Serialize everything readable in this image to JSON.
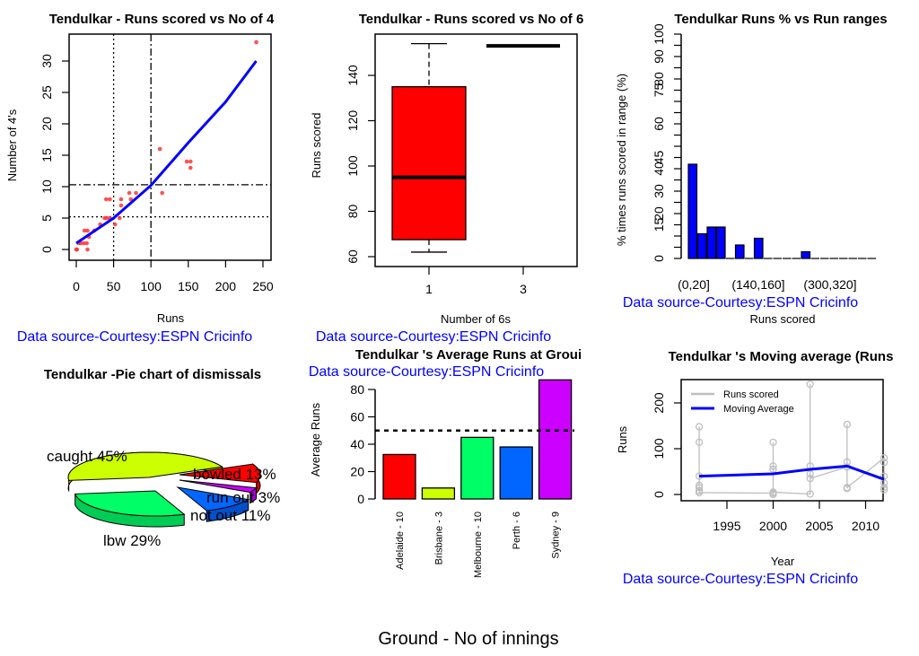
{
  "source_note": "Data source-Courtesy:ESPN Cricinfo",
  "chart_data": [
    {
      "type": "scatter",
      "title": "Tendulkar - Runs scored vs No of 4",
      "xlabel": "Runs",
      "ylabel": "Number of 4's",
      "xlim": [
        0,
        250
      ],
      "ylim": [
        -1,
        33
      ],
      "xticks": [
        "0",
        "50",
        "100",
        "150",
        "200",
        "250"
      ],
      "yticks": [
        "0",
        "5",
        "10",
        "15",
        "20",
        "25",
        "30"
      ],
      "points": [
        [
          0,
          0
        ],
        [
          1,
          0
        ],
        [
          3,
          1
        ],
        [
          6,
          1
        ],
        [
          10,
          1
        ],
        [
          11,
          3
        ],
        [
          14,
          1
        ],
        [
          15,
          0
        ],
        [
          15,
          3
        ],
        [
          17,
          2
        ],
        [
          24,
          3
        ],
        [
          32,
          4
        ],
        [
          38,
          5
        ],
        [
          41,
          5
        ],
        [
          40,
          8
        ],
        [
          45,
          8
        ],
        [
          45,
          5
        ],
        [
          52,
          4
        ],
        [
          58,
          5
        ],
        [
          60,
          8
        ],
        [
          60,
          7
        ],
        [
          71,
          9
        ],
        [
          73,
          8
        ],
        [
          80,
          9
        ],
        [
          115,
          9
        ],
        [
          112,
          16
        ],
        [
          148,
          14
        ],
        [
          153,
          14
        ],
        [
          153,
          13
        ],
        [
          241,
          33
        ]
      ],
      "fit_line": [
        [
          0,
          1
        ],
        [
          50,
          5
        ],
        [
          100,
          10.2
        ],
        [
          150,
          17
        ],
        [
          200,
          23.5
        ],
        [
          241,
          30
        ]
      ],
      "vlines": [
        {
          "x": 50,
          "style": "dotted"
        },
        {
          "x": 100,
          "style": "dashdot"
        }
      ],
      "hlines": [
        {
          "y": 5.2,
          "style": "dotted"
        },
        {
          "y": 10.3,
          "style": "dashdot"
        }
      ],
      "colors": {
        "points": "#ff3333",
        "fit": "#0000ff"
      }
    },
    {
      "type": "box",
      "title": "Tendulkar - Runs scored vs No of 6",
      "xlabel": "Number of 6s",
      "ylabel": "Runs scored",
      "ylim": [
        58,
        157
      ],
      "yticks": [
        "60",
        "80",
        "100",
        "120",
        "140"
      ],
      "categories": [
        "1",
        "3"
      ],
      "boxes": [
        {
          "min": 62,
          "q1": 67.5,
          "median": 95,
          "q3": 135,
          "max": 154
        },
        {
          "min": 153,
          "q1": 153,
          "median": 153,
          "q3": 153,
          "max": 153
        }
      ],
      "colors": {
        "box": "#ff0000"
      }
    },
    {
      "type": "bar",
      "title": "Tendulkar Runs %  vs Run ranges",
      "xlabel": "Runs scored",
      "ylabel": "% times runs scored in range (%)",
      "ylim": [
        0,
        100
      ],
      "ytick_labels": [
        "0",
        "15",
        "20",
        "30",
        "40",
        "45",
        "60",
        "75",
        "80",
        "90",
        "100"
      ],
      "xtick_labels": [
        "(0,20]",
        "(140,160]",
        "(300,320]"
      ],
      "values": [
        42,
        11,
        14,
        14,
        0,
        6,
        0,
        9,
        0,
        0,
        0,
        0,
        3,
        0,
        0,
        0,
        0,
        0,
        0,
        0
      ],
      "colors": {
        "bar": "#0000ff"
      }
    },
    {
      "type": "pie",
      "title": "Tendulkar -Pie chart of dismissals",
      "slices": [
        {
          "label": "caught 45%",
          "value": 45,
          "color": "#ccff00"
        },
        {
          "label": "lbw 29%",
          "value": 29,
          "color": "#00ff66"
        },
        {
          "label": "not out 11%",
          "value": 11,
          "color": "#0066ff"
        },
        {
          "label": "run out 3%",
          "value": 3,
          "color": "#cc00ff"
        },
        {
          "label": "bowled 13%",
          "value": 13,
          "color": "#ff0000"
        }
      ]
    },
    {
      "type": "bar",
      "title": "Tendulkar 's Average Runs at Groui",
      "xlabel": "Ground - No of innings",
      "ylabel": "Average Runs",
      "ylim": [
        0,
        88
      ],
      "yticks": [
        "0",
        "20",
        "40",
        "60",
        "80"
      ],
      "categories": [
        "Adelaide - 10",
        "Brisbane - 3",
        "Melbourne - 10",
        "Perth - 6",
        "Sydney - 9"
      ],
      "values": [
        32.5,
        8,
        45,
        38,
        87
      ],
      "colors": [
        "#ff0000",
        "#ccff00",
        "#00ff66",
        "#0066ff",
        "#cc00ff"
      ],
      "reference_line": 50
    },
    {
      "type": "line",
      "title": "Tendulkar 's Moving average (Runs",
      "xlabel": "Year",
      "ylabel": "Runs",
      "xlim": [
        1991,
        2013
      ],
      "ylim": [
        -10,
        245
      ],
      "xticks": [
        "1995",
        "2000",
        "2005",
        "2010"
      ],
      "yticks": [
        "0",
        "100",
        "200"
      ],
      "legend": [
        "Runs scored",
        "Moving Average"
      ],
      "legend_position": "top-left",
      "runs": [
        [
          1992,
          148
        ],
        [
          1992,
          114
        ],
        [
          1992,
          40
        ],
        [
          1992,
          20
        ],
        [
          1992,
          15
        ],
        [
          1992,
          8
        ],
        [
          1992,
          4
        ],
        [
          2000,
          3
        ],
        [
          2000,
          114
        ],
        [
          2000,
          62
        ],
        [
          2000,
          55
        ],
        [
          2000,
          0
        ],
        [
          2000,
          5
        ],
        [
          2004,
          1
        ],
        [
          2004,
          241
        ],
        [
          2004,
          62
        ],
        [
          2004,
          45
        ],
        [
          2004,
          35
        ],
        [
          2008,
          60
        ],
        [
          2008,
          153
        ],
        [
          2008,
          71
        ],
        [
          2008,
          13
        ],
        [
          2008,
          15
        ],
        [
          2012,
          80
        ],
        [
          2012,
          70
        ],
        [
          2012,
          40
        ],
        [
          2012,
          25
        ],
        [
          2012,
          15
        ],
        [
          2012,
          10
        ]
      ],
      "moving_average": [
        [
          1992,
          40
        ],
        [
          2000,
          45
        ],
        [
          2004,
          55
        ],
        [
          2008,
          62
        ],
        [
          2012,
          33
        ]
      ],
      "colors": {
        "runs": "#bebebe",
        "ma": "#0000ff"
      }
    }
  ]
}
